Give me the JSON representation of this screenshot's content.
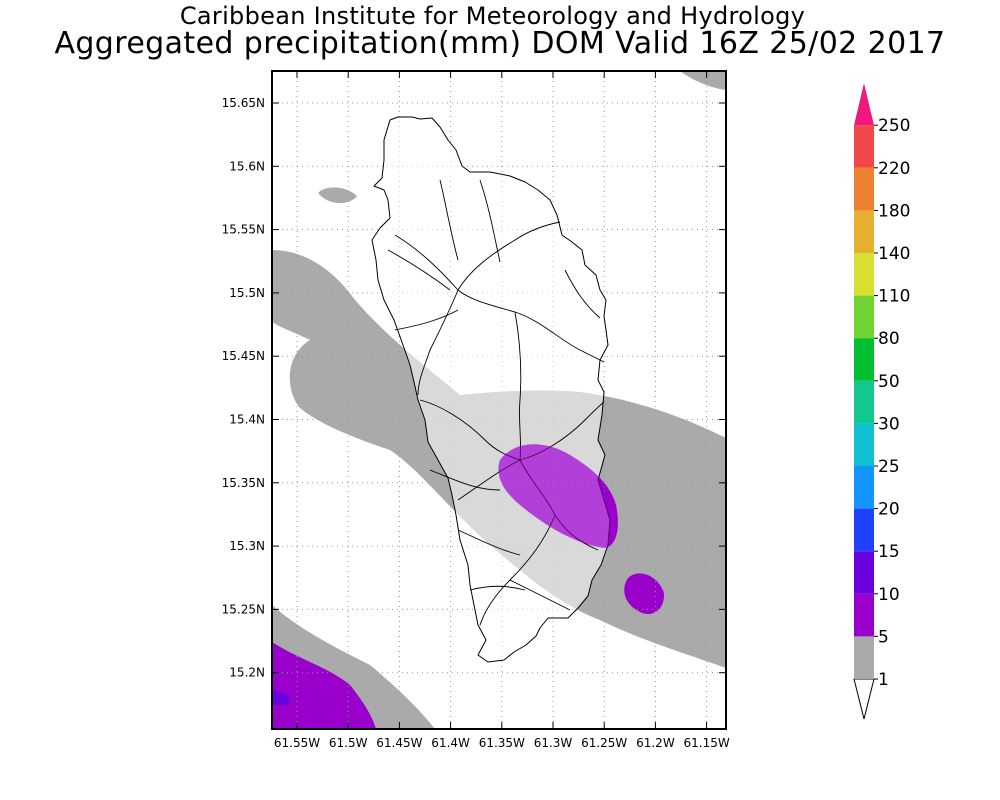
{
  "title": {
    "line1": "Caribbean Institute for Meteorology and Hydrology",
    "line2": "Aggregated precipitation(mm) DOM Valid 16Z 25/02 2017"
  },
  "map": {
    "lat_labels": [
      "15.65N",
      "15.6N",
      "15.55N",
      "15.5N",
      "15.45N",
      "15.4N",
      "15.35N",
      "15.3N",
      "15.25N",
      "15.2N"
    ],
    "lon_labels": [
      "61.55W",
      "61.5W",
      "61.45W",
      "61.4W",
      "61.35W",
      "61.3W",
      "61.25W",
      "61.2W",
      "61.15W"
    ]
  },
  "colorbar": {
    "labels": [
      "1",
      "5",
      "10",
      "15",
      "20",
      "25",
      "30",
      "50",
      "80",
      "110",
      "140",
      "180",
      "220",
      "250"
    ],
    "colors": [
      "#aaaaaa",
      "#9a00cc",
      "#6a00dd",
      "#2040ff",
      "#1496ff",
      "#10c0d0",
      "#10c890",
      "#00c030",
      "#70d430",
      "#d8e030",
      "#e8b030",
      "#ee8030",
      "#f04848"
    ],
    "top_arrow_color": "#f0187a"
  }
}
